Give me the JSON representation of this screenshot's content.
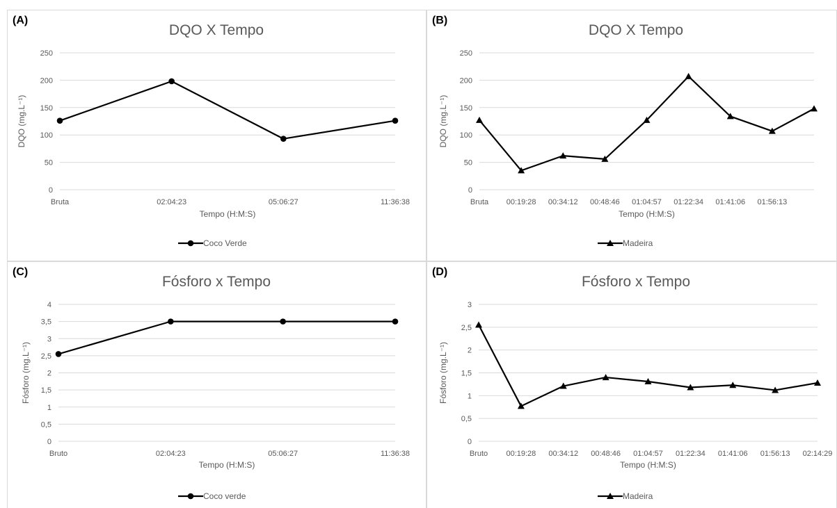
{
  "colors": {
    "series": "#000000",
    "grid": "#d9d9d9",
    "text": "#595959"
  },
  "chart_data": [
    {
      "panel_label": "(A)",
      "type": "line",
      "title": "DQO X Tempo",
      "xlabel": "Tempo (H:M:S)",
      "ylabel": "DQO (mg.L⁻¹)",
      "categories": [
        "Bruta",
        "02:04:23",
        "05:06:27",
        "11:36:38"
      ],
      "y_ticks": [
        "0",
        "50",
        "100",
        "150",
        "200",
        "250"
      ],
      "ylim": [
        0,
        250
      ],
      "grid": true,
      "legend_position": "bottom",
      "series": [
        {
          "name": "Coco Verde",
          "marker": "circle",
          "values": [
            126,
            198,
            93,
            126
          ]
        }
      ]
    },
    {
      "panel_label": "(B)",
      "type": "line",
      "title": "DQO X Tempo",
      "xlabel": "Tempo (H:M:S)",
      "ylabel": "DQO (mg.L⁻¹)",
      "categories": [
        "Bruta",
        "00:19:28",
        "00:34:12",
        "00:48:46",
        "01:04:57",
        "01:22:34",
        "01:41:06",
        "01:56:13",
        ""
      ],
      "y_ticks": [
        "0",
        "50",
        "100",
        "150",
        "200",
        "250"
      ],
      "ylim": [
        0,
        250
      ],
      "grid": true,
      "legend_position": "bottom",
      "series": [
        {
          "name": "Madeira",
          "marker": "triangle",
          "values": [
            127,
            35,
            62,
            56,
            127,
            207,
            134,
            107,
            148
          ]
        }
      ]
    },
    {
      "panel_label": "(C)",
      "type": "line",
      "title": "Fósforo x Tempo",
      "xlabel": "Tempo (H:M:S)",
      "ylabel": "Fósforo (mg.L⁻¹)",
      "categories": [
        "Bruto",
        "02:04:23",
        "05:06:27",
        "11:36:38"
      ],
      "y_ticks": [
        "0",
        "0,5",
        "1",
        "1,5",
        "2",
        "2,5",
        "3",
        "3,5",
        "4"
      ],
      "ylim": [
        0,
        4
      ],
      "grid": true,
      "legend_position": "bottom",
      "series": [
        {
          "name": "Coco verde",
          "marker": "circle",
          "values": [
            2.55,
            3.5,
            3.5,
            3.5
          ]
        }
      ]
    },
    {
      "panel_label": "(D)",
      "type": "line",
      "title": "Fósforo x Tempo",
      "xlabel": "Tempo (H:M:S)",
      "ylabel": "Fósforo (mg.L⁻¹)",
      "categories": [
        "Bruto",
        "00:19:28",
        "00:34:12",
        "00:48:46",
        "01:04:57",
        "01:22:34",
        "01:41:06",
        "01:56:13",
        "02:14:29"
      ],
      "y_ticks": [
        "0",
        "0,5",
        "1",
        "1,5",
        "2",
        "2,5",
        "3"
      ],
      "ylim": [
        0,
        3
      ],
      "grid": true,
      "legend_position": "bottom",
      "series": [
        {
          "name": "Madeira",
          "marker": "triangle",
          "values": [
            2.55,
            0.77,
            1.21,
            1.4,
            1.31,
            1.18,
            1.23,
            1.12,
            1.28
          ]
        }
      ]
    }
  ]
}
